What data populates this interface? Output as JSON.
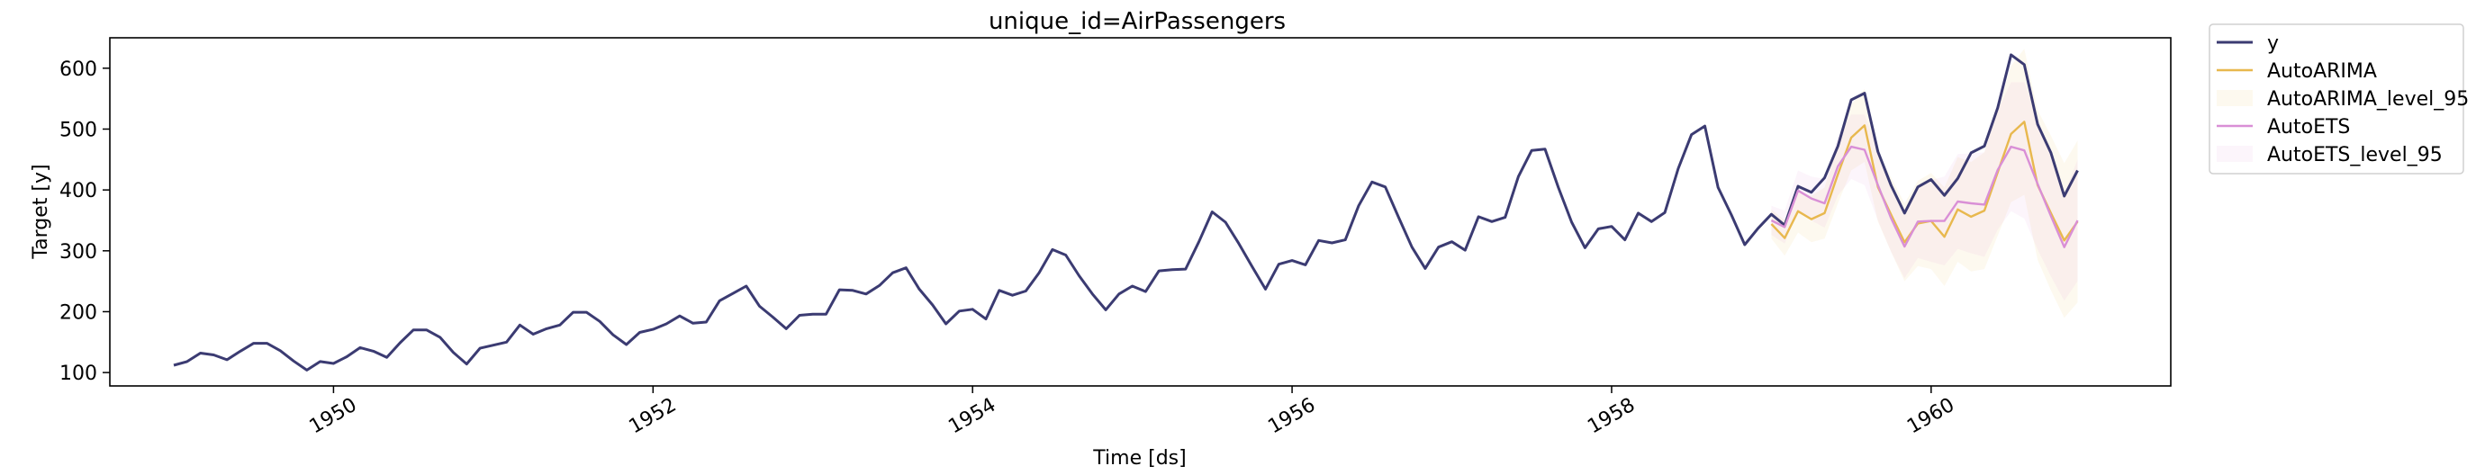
{
  "chart_data": {
    "type": "line",
    "title": "unique_id=AirPassengers",
    "xlabel": "Time [ds]",
    "ylabel": "Target [y]",
    "xlim": [
      1948.6,
      1961.5
    ],
    "ylim": [
      78,
      650
    ],
    "xticks": [
      {
        "value": 1950,
        "label": "1950"
      },
      {
        "value": 1952,
        "label": "1952"
      },
      {
        "value": 1954,
        "label": "1954"
      },
      {
        "value": 1956,
        "label": "1956"
      },
      {
        "value": 1958,
        "label": "1958"
      },
      {
        "value": 1960,
        "label": "1960"
      }
    ],
    "yticks": [
      100,
      200,
      300,
      400,
      500,
      600
    ],
    "grid": false,
    "legend_position": "outside-top-right",
    "colors": {
      "y": "#3b3b72",
      "AutoARIMA": "#e8b84e",
      "AutoARIMA_band": "#e8b84e",
      "AutoETS": "#d98fd6",
      "AutoETS_band": "#d98fd6"
    },
    "history_start": "1949-01",
    "forecast_start": "1959-01",
    "series": [
      {
        "name": "y",
        "kind": "line",
        "start": "1949-01",
        "values": [
          112,
          118,
          132,
          129,
          121,
          135,
          148,
          148,
          136,
          119,
          104,
          118,
          115,
          126,
          141,
          135,
          125,
          149,
          170,
          170,
          158,
          133,
          114,
          140,
          145,
          150,
          178,
          163,
          172,
          178,
          199,
          199,
          184,
          162,
          146,
          166,
          171,
          180,
          193,
          181,
          183,
          218,
          230,
          242,
          209,
          191,
          172,
          194,
          196,
          196,
          236,
          235,
          229,
          243,
          264,
          272,
          237,
          211,
          180,
          201,
          204,
          188,
          235,
          227,
          234,
          264,
          302,
          293,
          259,
          229,
          203,
          229,
          242,
          233,
          267,
          269,
          270,
          315,
          364,
          347,
          312,
          274,
          237,
          278,
          284,
          277,
          317,
          313,
          318,
          374,
          413,
          405,
          355,
          306,
          271,
          306,
          315,
          301,
          356,
          348,
          355,
          422,
          465,
          467,
          404,
          347,
          305,
          336,
          340,
          318,
          362,
          348,
          363,
          435,
          491,
          505,
          404,
          359,
          310,
          337,
          360,
          342,
          406,
          396,
          420,
          472,
          548,
          559,
          463,
          407,
          362,
          405,
          417,
          391,
          419,
          461,
          472,
          535,
          622,
          606,
          508,
          461,
          390,
          432
        ]
      },
      {
        "name": "AutoARIMA",
        "kind": "line",
        "start": "1959-01",
        "values": [
          344,
          321,
          365,
          352,
          362,
          426,
          486,
          506,
          405,
          359,
          314,
          345,
          349,
          323,
          368,
          356,
          366,
          429,
          492,
          512,
          408,
          362,
          317,
          348
        ]
      },
      {
        "name": "AutoARIMA_level_95",
        "kind": "band",
        "start": "1959-01",
        "lo": [
          320,
          292,
          330,
          314,
          320,
          378,
          432,
          446,
          348,
          298,
          250,
          275,
          270,
          242,
          282,
          266,
          270,
          325,
          380,
          392,
          285,
          235,
          190,
          215
        ],
        "hi": [
          368,
          350,
          400,
          390,
          404,
          474,
          540,
          566,
          462,
          420,
          378,
          415,
          428,
          404,
          454,
          446,
          462,
          533,
          604,
          632,
          531,
          489,
          444,
          481
        ]
      },
      {
        "name": "AutoETS",
        "kind": "line",
        "start": "1959-01",
        "values": [
          350,
          339,
          399,
          386,
          378,
          439,
          471,
          466,
          408,
          353,
          307,
          348,
          349,
          349,
          381,
          378,
          376,
          433,
          471,
          465,
          410,
          357,
          306,
          350
        ]
      },
      {
        "name": "AutoETS_level_95",
        "kind": "band",
        "start": "1959-01",
        "lo": [
          326,
          312,
          366,
          350,
          338,
          391,
          418,
          408,
          350,
          298,
          255,
          288,
          282,
          276,
          303,
          296,
          290,
          335,
          365,
          353,
          302,
          258,
          218,
          250
        ],
        "hi": [
          374,
          366,
          432,
          422,
          418,
          487,
          524,
          524,
          466,
          408,
          359,
          408,
          416,
          422,
          459,
          460,
          462,
          531,
          577,
          577,
          518,
          456,
          394,
          450
        ]
      }
    ],
    "legend": [
      {
        "label": "y",
        "kind": "line",
        "color": "#3b3b72"
      },
      {
        "label": "AutoARIMA",
        "kind": "line",
        "color": "#e8b84e"
      },
      {
        "label": "AutoARIMA_level_95",
        "kind": "band",
        "color": "#e8b84e"
      },
      {
        "label": "AutoETS",
        "kind": "line",
        "color": "#d98fd6"
      },
      {
        "label": "AutoETS_level_95",
        "kind": "band",
        "color": "#d98fd6"
      }
    ]
  }
}
